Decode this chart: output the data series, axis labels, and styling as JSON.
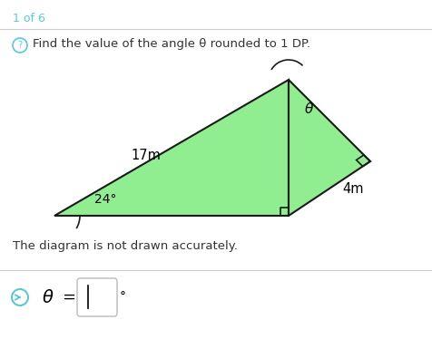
{
  "title": "1 of 6",
  "question_text": "Find the value of the angle θ rounded to 1 DP.",
  "footer_text": "The diagram is not drawn accurately.",
  "angle_label": "24°",
  "side_label_left": "17m",
  "side_label_right": "4m",
  "theta_label": "θ",
  "triangle_fill": "#90EE90",
  "triangle_edge": "#1a1a1a",
  "bg_color": "#ffffff",
  "title_color": "#5bc8d8",
  "question_color": "#333333",
  "line_color": "#cccccc",
  "icon_color": "#5bc8d8",
  "A": [
    0.1,
    0.18
  ],
  "B": [
    0.62,
    0.18
  ],
  "C": [
    0.62,
    0.85
  ],
  "D": [
    0.82,
    0.48
  ]
}
